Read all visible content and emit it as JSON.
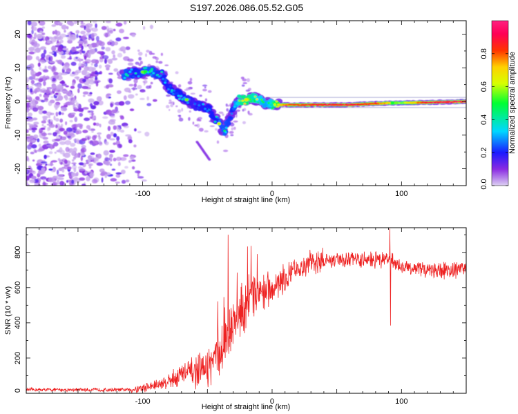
{
  "title": "S197.2026.086.05.52.G05",
  "chart_data": [
    {
      "type": "heatmap",
      "name": "spectrogram",
      "xlabel": "Height of straight line (km)",
      "ylabel": "Frequency (Hz)",
      "xlim": [
        -190,
        150
      ],
      "ylim": [
        -25,
        24
      ],
      "x_ticks": [
        -100,
        0,
        100
      ],
      "y_ticks": [
        -20,
        -10,
        0,
        10,
        20
      ],
      "colorbar": {
        "label": "Normalized spectral amplitude",
        "range": [
          0.0,
          1.0
        ],
        "ticks": [
          0.0,
          0.2,
          0.4,
          0.6,
          0.8
        ],
        "colors": [
          "#dcd0f2",
          "#8a2be2",
          "#1a1aff",
          "#00d8ff",
          "#00ff33",
          "#d8ff00",
          "#ffd000",
          "#ff3300",
          "#ff0055",
          "#ff2080"
        ]
      },
      "ridge": {
        "x": [
          -115,
          -105,
          -95,
          -85,
          -80,
          -70,
          -60,
          -50,
          -42,
          -37,
          -30,
          -25,
          -20,
          -15,
          -10,
          -5,
          0,
          10,
          20,
          40,
          60,
          80,
          100,
          120,
          150
        ],
        "freq": [
          8,
          8.5,
          9,
          8,
          4,
          1.5,
          -1,
          -2,
          -6,
          -9,
          -2,
          0.5,
          0.5,
          1,
          0.5,
          -0.5,
          -1,
          -1,
          -1,
          -1,
          -1,
          -0.6,
          -0.4,
          -0.3,
          0
        ],
        "amplitude": [
          0.35,
          0.3,
          0.35,
          0.3,
          0.3,
          0.3,
          0.25,
          0.3,
          0.3,
          0.35,
          0.3,
          0.5,
          0.55,
          0.5,
          0.45,
          0.4,
          0.45,
          0.75,
          0.8,
          0.85,
          0.85,
          0.8,
          0.5,
          0.85,
          0.9
        ]
      }
    },
    {
      "type": "line",
      "name": "snr",
      "xlabel": "Height of straight line (km)",
      "ylabel": "SNR (10 * v/v)",
      "xlim": [
        -190,
        150
      ],
      "ylim": [
        0,
        940
      ],
      "x_ticks": [
        -100,
        0,
        100
      ],
      "y_ticks": [
        0,
        200,
        400,
        600,
        800
      ],
      "color": "#ee2222",
      "envelope": {
        "x": [
          -190,
          -110,
          -100,
          -90,
          -80,
          -70,
          -60,
          -50,
          -40,
          -35,
          -30,
          -25,
          -20,
          -10,
          0,
          10,
          20,
          30,
          40,
          60,
          80,
          90,
          100,
          120,
          150
        ],
        "y": [
          20,
          20,
          30,
          45,
          70,
          110,
          120,
          140,
          230,
          310,
          380,
          460,
          510,
          580,
          600,
          640,
          700,
          740,
          750,
          760,
          760,
          760,
          720,
          700,
          700
        ]
      },
      "spikes": [
        {
          "x": -34,
          "y": 900
        },
        {
          "x": -27,
          "y": 685
        },
        {
          "x": 91,
          "y": 935
        },
        {
          "x": 91.5,
          "y": 385
        }
      ]
    }
  ]
}
